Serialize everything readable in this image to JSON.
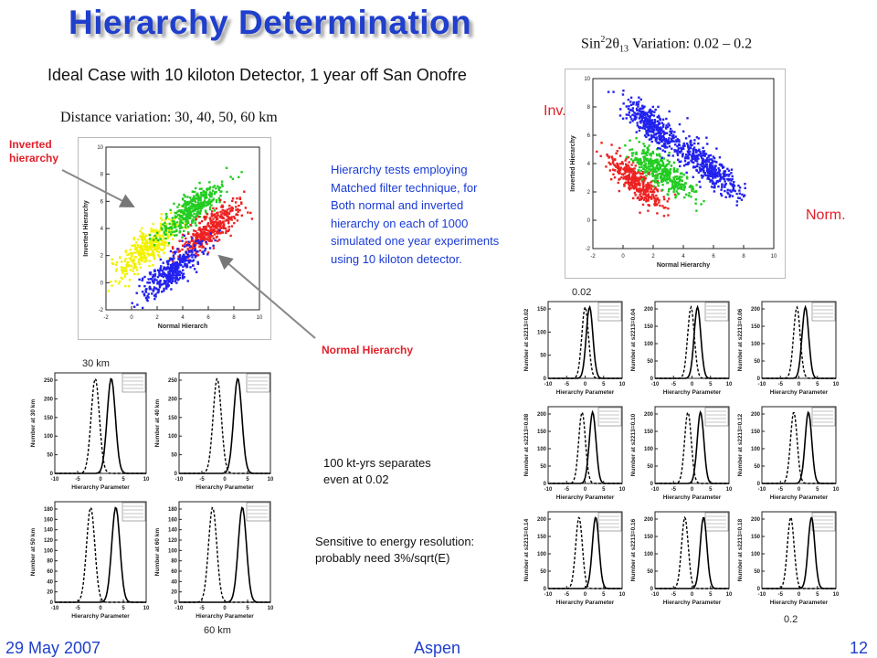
{
  "title": "Hierarchy Determination",
  "subtitle": "Ideal Case with 10 kiloton Detector, 1 year off San Onofre",
  "distance_variation": "Distance variation: 30, 40, 50, 60 km",
  "sin_variation": {
    "prefix": "Sin",
    "sup": "2",
    "mid": "2θ",
    "sub": "13",
    "suffix": " Variation: 0.02 – 0.2"
  },
  "labels": {
    "inverted_hierarchy_line1": "Inverted",
    "inverted_hierarchy_line2": "hierarchy",
    "normal_hierarchy": "Normal Hierarchy",
    "inv": "Inv.",
    "norm": "Norm.",
    "km30": "30 km",
    "km60": "60 km",
    "val_002": "0.02",
    "val_02": "0.2"
  },
  "description": [
    "Hierarchy tests employing",
    "Matched filter technique, for",
    "Both normal and inverted",
    "hierarchy on each of 1000",
    "simulated one year experiments",
    "using 10 kiloton detector."
  ],
  "notes": {
    "separates_line1": "100 kt-yrs separates",
    "separates_line2": "even at 0.02",
    "sensitive_line1": "Sensitive to energy resolution:",
    "sensitive_line2": "probably need 3%/sqrt(E)"
  },
  "footer": {
    "date": "29 May 2007",
    "location": "Aspen",
    "page": "12"
  },
  "colors": {
    "title_blue": "#1f3fcc",
    "text_blue": "#1a3bd6",
    "label_red": "#e0202a",
    "scatter_yellow": "#f2f200",
    "scatter_green": "#22cc22",
    "scatter_red": "#ee2222",
    "scatter_blue": "#2222ee"
  },
  "scatter_left": {
    "xlabel": "Normal Hierarch",
    "ylabel": "Inverted Hierarchy",
    "x_ticks": [
      "-2",
      "0",
      "2",
      "4",
      "6",
      "8",
      "10"
    ],
    "y_ticks": [
      "-2",
      "0",
      "2",
      "4",
      "6",
      "8",
      "10"
    ]
  },
  "scatter_right": {
    "xlabel": "Normal Hierarchy",
    "ylabel": "Inverted Hierarchy",
    "x_ticks": [
      "-2",
      "0",
      "2",
      "4",
      "6",
      "8",
      "10"
    ],
    "y_ticks": [
      "-2",
      "0",
      "2",
      "4",
      "6",
      "8",
      "10"
    ]
  },
  "histograms": {
    "xlabel": "Hierarchy Parameter",
    "x_ticks": [
      "-10",
      "-5",
      "0",
      "5",
      "10"
    ],
    "distance_panels": [
      {
        "ylabel": "Number at 30 km",
        "y_ticks": [
          "0",
          "50",
          "100",
          "150",
          "200",
          "250"
        ]
      },
      {
        "ylabel": "Number at 40 km",
        "y_ticks": [
          "0",
          "50",
          "100",
          "150",
          "200",
          "250"
        ]
      },
      {
        "ylabel": "Number at 50 km",
        "y_ticks": [
          "0",
          "20",
          "40",
          "60",
          "80",
          "100",
          "120",
          "140",
          "160",
          "180"
        ]
      },
      {
        "ylabel": "Number at 60 km",
        "y_ticks": [
          "0",
          "20",
          "40",
          "60",
          "80",
          "100",
          "120",
          "140",
          "160",
          "180"
        ]
      }
    ],
    "sin_panels": [
      {
        "ylabel": "Number at s2213=0.02",
        "y_ticks": [
          "0",
          "50",
          "100",
          "150"
        ]
      },
      {
        "ylabel": "Number at s2213=0.04",
        "y_ticks": [
          "0",
          "50",
          "100",
          "150",
          "200"
        ]
      },
      {
        "ylabel": "Number at s2213=0.06",
        "y_ticks": [
          "0",
          "50",
          "100",
          "150",
          "200"
        ]
      },
      {
        "ylabel": "Number at s2213=0.08",
        "y_ticks": [
          "0",
          "50",
          "100",
          "150",
          "200"
        ]
      },
      {
        "ylabel": "Number at s2213=0.10",
        "y_ticks": [
          "0",
          "50",
          "100",
          "150",
          "200"
        ]
      },
      {
        "ylabel": "Number at s2213=0.12",
        "y_ticks": [
          "0",
          "50",
          "100",
          "150",
          "200"
        ]
      },
      {
        "ylabel": "Number at s2213=0.14",
        "y_ticks": [
          "0",
          "50",
          "100",
          "150",
          "200"
        ]
      },
      {
        "ylabel": "Number at s2213=0.16",
        "y_ticks": [
          "0",
          "50",
          "100",
          "150",
          "200"
        ]
      },
      {
        "ylabel": "Number at s2213=0.18",
        "y_ticks": [
          "0",
          "50",
          "100",
          "150",
          "200"
        ]
      }
    ]
  }
}
